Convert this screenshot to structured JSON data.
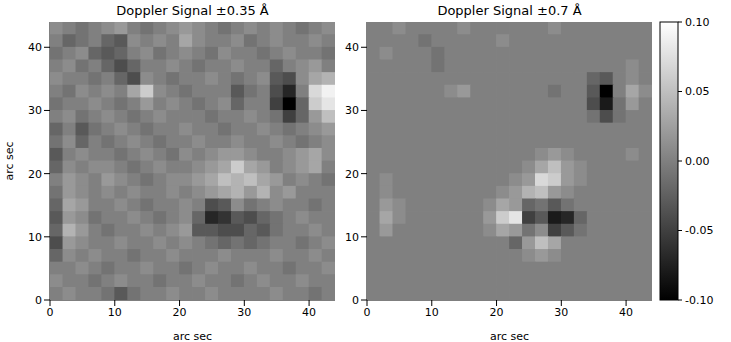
{
  "chart_data": [
    {
      "type": "heatmap",
      "title": "Doppler Signal ±0.35 Å",
      "xlabel": "arc sec",
      "ylabel": "arc sec",
      "xlim": [
        0,
        44
      ],
      "ylim": [
        0,
        44
      ],
      "xticks": [
        0,
        10,
        20,
        30,
        40
      ],
      "yticks": [
        0,
        10,
        20,
        30,
        40
      ],
      "cells": [
        [
          0.01,
          0,
          -0.01,
          0,
          0.01,
          0.02,
          0,
          -0.01,
          0,
          0.01,
          0.02,
          0.01,
          0,
          -0.01,
          0,
          0.01,
          0,
          0.01,
          0,
          -0.01,
          0,
          0.01
        ],
        [
          0,
          -0.02,
          -0.01,
          0,
          -0.02,
          -0.03,
          0.01,
          0,
          0.01,
          0,
          0.03,
          0.01,
          0,
          0,
          0.01,
          -0.01,
          0,
          0.01,
          0,
          0,
          0.01,
          0
        ],
        [
          -0.01,
          0,
          0.01,
          -0.02,
          -0.03,
          -0.02,
          0,
          0.01,
          -0.01,
          0,
          0.01,
          0,
          -0.01,
          0.01,
          0,
          0,
          -0.01,
          0,
          0.01,
          0,
          0,
          -0.01
        ],
        [
          0,
          0.01,
          -0.01,
          0,
          -0.02,
          -0.04,
          -0.02,
          0,
          0,
          0.01,
          0,
          -0.01,
          0,
          0,
          0.01,
          0,
          0,
          -0.02,
          0,
          0.01,
          0.02,
          0
        ],
        [
          0.01,
          0,
          0,
          -0.01,
          0,
          -0.02,
          -0.04,
          0.01,
          0,
          -0.01,
          0,
          0,
          0.01,
          0,
          -0.01,
          0,
          0.01,
          -0.03,
          -0.04,
          0.01,
          0.03,
          0.04
        ],
        [
          0,
          -0.01,
          0.01,
          0,
          0.01,
          0,
          0.03,
          0.06,
          0.01,
          0,
          -0.01,
          0,
          0,
          0,
          -0.03,
          -0.01,
          0,
          -0.04,
          -0.07,
          0,
          0.07,
          0.09
        ],
        [
          -0.01,
          0,
          0,
          0.01,
          0,
          -0.01,
          0,
          0.02,
          0,
          0.01,
          0,
          -0.01,
          0,
          0.01,
          -0.02,
          0,
          0,
          -0.05,
          -0.1,
          -0.02,
          0.06,
          0.08
        ],
        [
          0,
          0.01,
          -0.01,
          0,
          0.01,
          0,
          -0.01,
          0,
          0.01,
          0,
          0,
          0,
          -0.01,
          0,
          0,
          0.01,
          0,
          -0.01,
          -0.05,
          -0.02,
          0.02,
          0.05
        ],
        [
          -0.02,
          0,
          -0.03,
          -0.01,
          0,
          0.01,
          0,
          -0.01,
          0,
          0,
          0.01,
          0,
          0,
          -0.01,
          0,
          0,
          0.01,
          0,
          -0.01,
          0,
          0.01,
          0.02
        ],
        [
          -0.01,
          0.01,
          -0.02,
          0,
          -0.01,
          0,
          0.01,
          0,
          -0.01,
          0,
          0,
          0.01,
          0,
          0,
          0.01,
          0,
          0,
          0.01,
          0,
          -0.01,
          0,
          0.01
        ],
        [
          -0.03,
          0,
          0.01,
          0,
          0,
          -0.01,
          0,
          0.01,
          0,
          -0.01,
          0.01,
          0,
          0.01,
          0.02,
          0.02,
          0.01,
          0,
          0,
          0.01,
          0.02,
          0.03,
          0.01
        ],
        [
          -0.02,
          0.01,
          0,
          0.01,
          0.01,
          0,
          -0.01,
          0,
          0.01,
          0,
          0,
          0.01,
          0.02,
          0.03,
          0.06,
          0.03,
          0.02,
          0,
          0.01,
          0.02,
          0.03,
          0
        ],
        [
          0,
          0.02,
          0.01,
          0,
          0.02,
          0.01,
          0,
          -0.01,
          0,
          0.01,
          0.01,
          0.02,
          0.03,
          0.05,
          0.04,
          0.05,
          0.03,
          0.02,
          0,
          0.01,
          0,
          -0.01
        ],
        [
          -0.01,
          0.02,
          0.01,
          0,
          0.01,
          0,
          0.01,
          0,
          0,
          0.01,
          0,
          0.01,
          0.02,
          0.03,
          0.04,
          0.02,
          0.04,
          0.01,
          0.02,
          0,
          0,
          0
        ],
        [
          -0.02,
          0.03,
          0.02,
          0,
          0,
          0.01,
          0,
          -0.01,
          0,
          0,
          0.01,
          0,
          -0.04,
          -0.03,
          0.01,
          -0.01,
          0,
          0.01,
          0,
          0,
          -0.01,
          0
        ],
        [
          -0.03,
          0.02,
          0.01,
          -0.01,
          0,
          0,
          0.01,
          0,
          -0.01,
          0,
          0.01,
          -0.02,
          -0.07,
          -0.06,
          -0.03,
          -0.04,
          -0.02,
          -0.01,
          0,
          0.01,
          0,
          0
        ],
        [
          -0.02,
          0.04,
          0.02,
          0,
          -0.01,
          0,
          0,
          0.01,
          0,
          0.01,
          0.02,
          -0.03,
          -0.03,
          -0.04,
          -0.04,
          -0.02,
          -0.03,
          -0.01,
          0,
          0,
          0.01,
          0
        ],
        [
          -0.04,
          0.02,
          0.01,
          0,
          0,
          0.01,
          0,
          0,
          0.01,
          0,
          0.01,
          0,
          -0.01,
          -0.02,
          -0.01,
          -0.02,
          -0.01,
          0,
          0,
          -0.01,
          0,
          0.01
        ],
        [
          -0.02,
          0.01,
          0,
          0.01,
          0,
          0,
          -0.01,
          0,
          0,
          0.01,
          0,
          0,
          0,
          0.01,
          0,
          0,
          0,
          0.01,
          0,
          0,
          0.01,
          0
        ],
        [
          0,
          0,
          0.01,
          0,
          -0.01,
          0,
          0,
          0.01,
          0,
          0,
          -0.01,
          0,
          0.01,
          0,
          0,
          0.01,
          0,
          0,
          -0.01,
          0,
          0,
          0.01
        ],
        [
          0.01,
          0,
          0,
          -0.01,
          0,
          0.01,
          0,
          0,
          -0.01,
          0,
          0,
          0.01,
          0,
          0,
          -0.01,
          0,
          0.01,
          0,
          0,
          0.01,
          0,
          0
        ],
        [
          0,
          0.01,
          0,
          0,
          -0.01,
          -0.03,
          -0.01,
          0,
          0,
          0.01,
          0,
          0,
          0.01,
          0,
          0,
          0,
          0,
          0.01,
          0,
          0,
          -0.01,
          0
        ]
      ]
    },
    {
      "type": "heatmap",
      "title": "Doppler Signal ±0.7 Å",
      "xlabel": "arc sec",
      "xlim": [
        0,
        44
      ],
      "ylim": [
        0,
        44
      ],
      "xticks": [
        0,
        10,
        20,
        30,
        40
      ],
      "yticks": [
        0,
        10,
        20,
        30,
        40
      ],
      "cells": [
        [
          0,
          0,
          0.01,
          0,
          0,
          0,
          0,
          0.01,
          0,
          0,
          0,
          0,
          0,
          0,
          0.01,
          0,
          0,
          0,
          0,
          0,
          0,
          0
        ],
        [
          0,
          0,
          0,
          0,
          -0.01,
          0,
          0,
          0,
          0,
          0,
          0.01,
          0,
          0,
          0,
          0,
          0,
          0,
          0,
          0,
          0,
          0,
          0
        ],
        [
          0,
          0.01,
          0,
          0,
          0,
          -0.01,
          0,
          0,
          0,
          0,
          0,
          0,
          0,
          0,
          0,
          0,
          0,
          0,
          0,
          0,
          0,
          0
        ],
        [
          0,
          0,
          0,
          0,
          0,
          -0.01,
          0,
          0,
          0,
          0,
          0,
          0,
          0,
          0,
          0,
          0,
          0,
          0,
          0,
          0,
          0.01,
          0
        ],
        [
          0,
          0,
          0,
          0,
          0,
          0,
          0,
          0,
          0,
          0,
          0,
          0,
          0,
          0,
          0,
          0,
          0,
          -0.02,
          -0.03,
          0,
          0.01,
          0
        ],
        [
          0,
          0,
          0,
          0,
          0,
          0,
          0.01,
          0.02,
          0,
          0,
          0,
          0,
          0,
          0,
          -0.01,
          0,
          0,
          -0.03,
          -0.1,
          0,
          0.03,
          0.01
        ],
        [
          0,
          0,
          0,
          0,
          0,
          0,
          0,
          0,
          0,
          0,
          0,
          0,
          0,
          0,
          0,
          0,
          0,
          -0.04,
          -0.08,
          -0.01,
          0.02,
          0
        ],
        [
          0,
          0,
          0,
          0,
          0,
          0,
          0,
          0,
          0,
          0,
          0,
          0,
          0,
          0,
          0,
          0,
          0,
          -0.01,
          -0.04,
          -0.01,
          0,
          0
        ],
        [
          0,
          0,
          0,
          0,
          0,
          0,
          0,
          0,
          0,
          0,
          0,
          0,
          0,
          0,
          0,
          0,
          0,
          0,
          0,
          0,
          0,
          0
        ],
        [
          0,
          0,
          0,
          0,
          0,
          0,
          0,
          0,
          0,
          0,
          0,
          0,
          0,
          0,
          0,
          0,
          0,
          0,
          0,
          0,
          0,
          0
        ],
        [
          0,
          0,
          0,
          0,
          0,
          0,
          0,
          0,
          0,
          0,
          0,
          0,
          0,
          0.01,
          0.02,
          0.01,
          0,
          0,
          0,
          0,
          0.01,
          0
        ],
        [
          0,
          0,
          0,
          0,
          0,
          0,
          0,
          0,
          0,
          0,
          0,
          0,
          0.01,
          0.03,
          0.05,
          0.02,
          0.01,
          0,
          0,
          0,
          0,
          0
        ],
        [
          0,
          0.01,
          0,
          0,
          0,
          0,
          0,
          0,
          0,
          0,
          0,
          0.01,
          0.02,
          0.07,
          0.06,
          0.02,
          0.01,
          0,
          0,
          0,
          0,
          0
        ],
        [
          0,
          0.01,
          0,
          0,
          0,
          0,
          0,
          0,
          0,
          0,
          0.01,
          0.02,
          0.04,
          0.05,
          0.02,
          0.01,
          0,
          0,
          0,
          0,
          0,
          0
        ],
        [
          0,
          0.02,
          0.01,
          0,
          0,
          0,
          0,
          0,
          0,
          0.01,
          0.03,
          0.02,
          -0.02,
          -0.01,
          -0.03,
          -0.01,
          0,
          0,
          0,
          0,
          0,
          0
        ],
        [
          0,
          0.03,
          0.01,
          0,
          0,
          0,
          0,
          0,
          0,
          0.02,
          0.06,
          0.08,
          -0.05,
          -0.03,
          -0.08,
          -0.07,
          -0.02,
          0,
          0,
          0,
          0,
          0
        ],
        [
          0,
          0.02,
          0,
          0,
          0,
          0,
          0,
          0,
          0,
          0.01,
          0.03,
          0.02,
          -0.01,
          0.01,
          -0.05,
          -0.03,
          -0.01,
          0,
          0,
          0,
          0,
          0
        ],
        [
          0,
          0,
          0,
          0,
          0,
          0,
          0,
          0,
          0,
          0,
          0,
          -0.02,
          0.02,
          0.05,
          0.03,
          0,
          0,
          0,
          0,
          0,
          0,
          0
        ],
        [
          0,
          0,
          0,
          0,
          0,
          0,
          0,
          0,
          0,
          0,
          0,
          0,
          0.01,
          0.02,
          0.01,
          0,
          0,
          0,
          0,
          0,
          0,
          0
        ],
        [
          0,
          0,
          0,
          0,
          0,
          0,
          0,
          0,
          0,
          0,
          0,
          0,
          0,
          0,
          0,
          0,
          0,
          0,
          0,
          0,
          0,
          0
        ],
        [
          0,
          0,
          0,
          0,
          0,
          0,
          0,
          0,
          0,
          0,
          0,
          0,
          0,
          0,
          0,
          0,
          0,
          0,
          0,
          0,
          0,
          0
        ],
        [
          0,
          0,
          0,
          0,
          0,
          0,
          0,
          0,
          0,
          0,
          0,
          0,
          0,
          0,
          0,
          0,
          0,
          0,
          0,
          0,
          0,
          0
        ]
      ],
      "colorbar": {
        "range": [
          -0.1,
          0.1
        ],
        "ticks": [
          {
            "value": 0.1,
            "label": "0.10"
          },
          {
            "value": 0.05,
            "label": "0.05"
          },
          {
            "value": 0,
            "label": "0.00"
          },
          {
            "value": -0.05,
            "label": "-0.05"
          },
          {
            "value": -0.1,
            "label": "-0.10"
          }
        ]
      }
    }
  ]
}
